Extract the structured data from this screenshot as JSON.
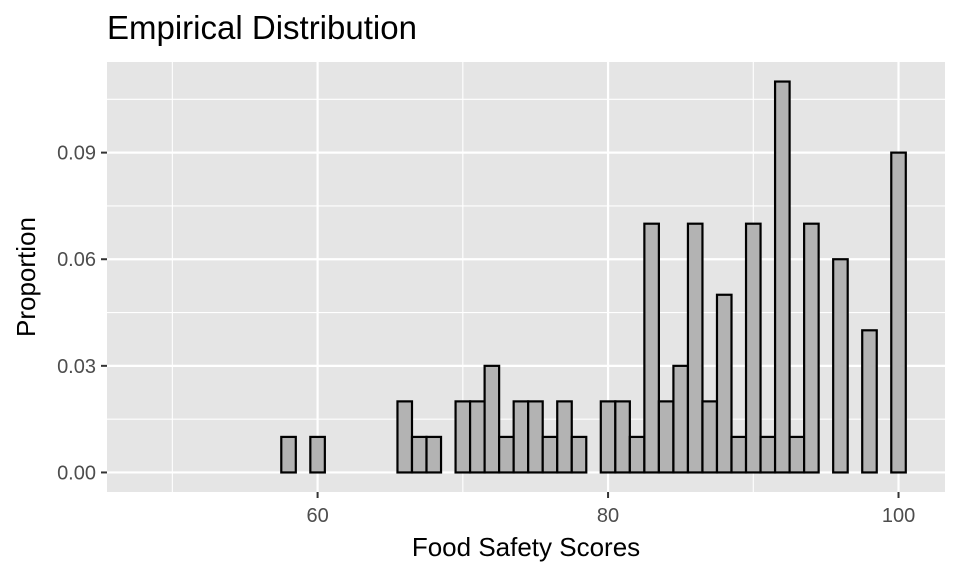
{
  "chart_data": {
    "type": "bar",
    "title": "Empirical Distribution",
    "xlabel": "Food Safety Scores",
    "ylabel": "Proportion",
    "xlim": [
      45.5,
      103.2
    ],
    "ylim": [
      -0.0055,
      0.1155
    ],
    "x_ticks": [
      60,
      80,
      100
    ],
    "x_tick_labels": [
      "60",
      "80",
      "100"
    ],
    "y_ticks": [
      0,
      0.03,
      0.06,
      0.09
    ],
    "y_tick_labels": [
      "0.00",
      "0.03",
      "0.06",
      "0.09"
    ],
    "bin_width": 1,
    "bin_centers": [
      48,
      49,
      50,
      51,
      52,
      53,
      54,
      55,
      56,
      57,
      58,
      59,
      60,
      61,
      62,
      63,
      64,
      65,
      66,
      67,
      68,
      69,
      70,
      71,
      72,
      73,
      74,
      75,
      76,
      77,
      78,
      79,
      80,
      81,
      82,
      83,
      84,
      85,
      86,
      87,
      88,
      89,
      90,
      91,
      92,
      93,
      94,
      95,
      96,
      97,
      98,
      99,
      100
    ],
    "values": [
      0,
      0,
      0,
      0,
      0,
      0,
      0,
      0,
      0,
      0,
      0.01,
      0,
      0.01,
      0,
      0,
      0,
      0,
      0,
      0.02,
      0.01,
      0.01,
      0,
      0.02,
      0.02,
      0.03,
      0.01,
      0.02,
      0.02,
      0.01,
      0.02,
      0.01,
      0,
      0.02,
      0.02,
      0.01,
      0.07,
      0.02,
      0.03,
      0.07,
      0.02,
      0.05,
      0.01,
      0.07,
      0.01,
      0.11,
      0.01,
      0.07,
      0,
      0.06,
      0,
      0.04,
      0,
      0.09
    ],
    "bar_fill": "#b3b3b3",
    "bar_outline": "#000000",
    "panel_background": "#e5e5e5",
    "grid_color": "#ffffff",
    "grid": true,
    "legend": "none"
  }
}
